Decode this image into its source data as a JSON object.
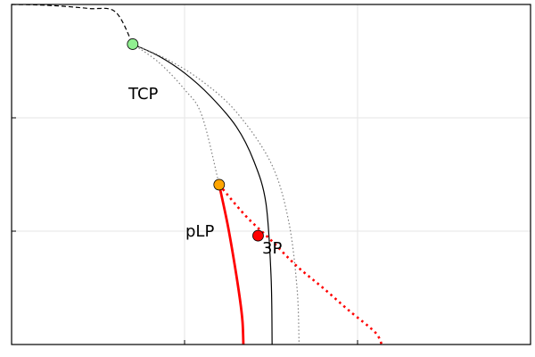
{
  "chart_data": {
    "type": "line",
    "title": "",
    "xlabel": "",
    "ylabel": "",
    "xlim": [
      0,
      3
    ],
    "ylim": [
      0,
      3
    ],
    "grid": true,
    "series": [
      {
        "style": "dashed",
        "color": "#000000",
        "x": [
          0,
          0.15,
          0.3,
          0.45,
          0.6,
          0.7
        ],
        "y": [
          3.0,
          2.996,
          2.984,
          2.964,
          2.935,
          2.65
        ]
      },
      {
        "style": "solid",
        "color": "#000000",
        "x": [
          0.7,
          0.85,
          1.0,
          1.15,
          1.3,
          1.4,
          1.47,
          1.5,
          1.506
        ],
        "y": [
          2.65,
          2.545,
          2.395,
          2.19,
          1.92,
          1.62,
          1.25,
          0.6,
          0
        ]
      },
      {
        "style": "dotted",
        "color": "#808080",
        "x": [
          0.7,
          0.9,
          1.1,
          1.3,
          1.5,
          1.6,
          1.65,
          1.662
        ],
        "y": [
          2.65,
          2.515,
          2.325,
          2.05,
          1.6,
          1.1,
          0.5,
          0
        ]
      },
      {
        "style": "dotted",
        "color": "#808080",
        "x": [
          0.7,
          0.85,
          1.0,
          1.1,
          1.2
        ],
        "y": [
          2.65,
          2.49,
          2.25,
          2.02,
          1.41
        ]
      },
      {
        "style": "solid",
        "color": "#ff0000",
        "x": [
          1.2,
          1.25,
          1.29,
          1.32,
          1.335,
          1.34
        ],
        "y": [
          1.41,
          1.05,
          0.7,
          0.4,
          0.2,
          0
        ]
      },
      {
        "style": "dotted",
        "color": "#ff0000",
        "x": [
          1.2,
          1.35,
          1.5,
          1.65,
          1.8,
          1.95,
          2.1,
          2.14
        ],
        "y": [
          1.41,
          1.14,
          0.92,
          0.69,
          0.5,
          0.3,
          0.11,
          0
        ]
      }
    ],
    "points": [
      {
        "label": "TCP",
        "x": 0.7,
        "y": 2.65,
        "color": "#90ee90"
      },
      {
        "label": "pLP",
        "x": 1.2,
        "y": 1.41,
        "color": "#ffa500"
      },
      {
        "label": "3P",
        "x": 1.425,
        "y": 0.96,
        "color": "#ff0000"
      }
    ]
  }
}
